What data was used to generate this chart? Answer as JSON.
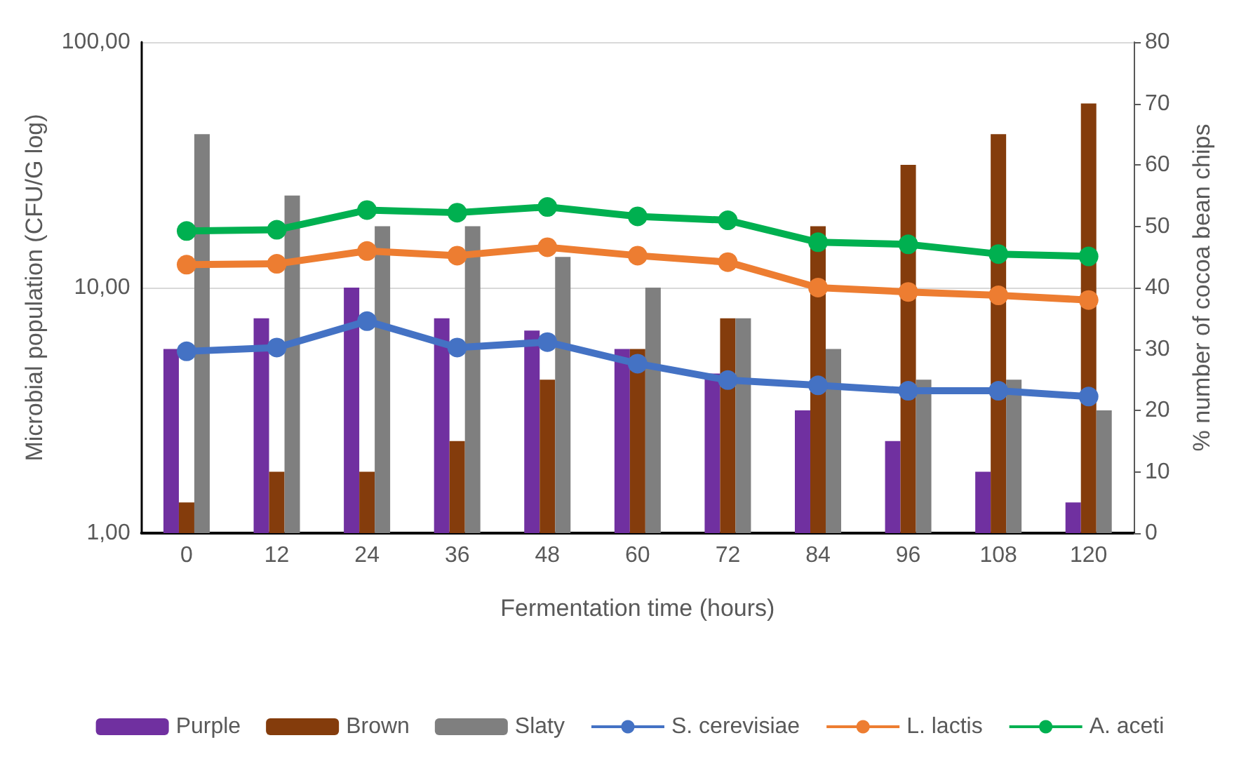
{
  "chart_data": {
    "type": "bar",
    "xlabel": "Fermentation time (hours)",
    "ylabel": "Microbial population (CFU/G log)",
    "y2label": "% number of cocoa bean chips",
    "categories": [
      "0",
      "12",
      "24",
      "36",
      "48",
      "60",
      "72",
      "84",
      "96",
      "108",
      "120"
    ],
    "series": [
      {
        "name": "Purple",
        "color": "#7030a0",
        "axis": "y2",
        "values": [
          30,
          35,
          40,
          35,
          33,
          30,
          26,
          20,
          15,
          10,
          5
        ]
      },
      {
        "name": "Brown",
        "color": "#843c0c",
        "axis": "y2",
        "values": [
          5,
          10,
          10,
          15,
          25,
          30,
          35,
          50,
          60,
          65,
          70
        ]
      },
      {
        "name": "Slaty",
        "color": "#7f7f7f",
        "axis": "y2",
        "values": [
          65,
          55,
          50,
          50,
          45,
          40,
          35,
          30,
          25,
          25,
          20
        ]
      },
      {
        "name": "S. cerevisiae",
        "type": "line",
        "color": "#4472c4",
        "axis": "y",
        "values": [
          5.5,
          5.7,
          7.3,
          5.7,
          6.0,
          4.9,
          4.2,
          4.0,
          3.8,
          3.8,
          3.6
        ]
      },
      {
        "name": "L. lactis",
        "type": "line",
        "color": "#ed7d31",
        "axis": "y",
        "values": [
          12.4,
          12.5,
          14.1,
          13.5,
          14.6,
          13.5,
          12.7,
          10.0,
          9.6,
          9.3,
          8.9
        ]
      },
      {
        "name": "A. aceti",
        "type": "line",
        "color": "#00b050",
        "axis": "y",
        "values": [
          17.0,
          17.2,
          20.7,
          20.2,
          21.3,
          19.5,
          18.8,
          15.3,
          15.0,
          13.7,
          13.4
        ]
      }
    ],
    "log": "y",
    "ylim": [
      1,
      100
    ],
    "yticks": [
      {
        "value": 1,
        "label": "1,00"
      },
      {
        "value": 10,
        "label": "10,00"
      },
      {
        "value": 100,
        "label": "100,00"
      }
    ],
    "y2lim": [
      0,
      80
    ],
    "y2ticks": [
      0,
      10,
      20,
      30,
      40,
      50,
      60,
      70,
      80
    ],
    "grid": "y",
    "legend": "bottom",
    "marker": "circle"
  }
}
